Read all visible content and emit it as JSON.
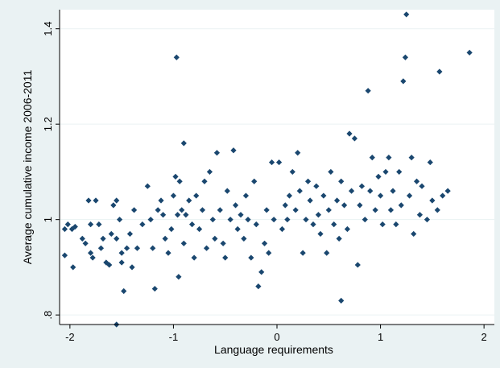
{
  "chart_data": {
    "type": "scatter",
    "title": "",
    "xlabel": "Language requirements",
    "ylabel": "Average cumulative income 2006-2011",
    "xlim": [
      -2.1,
      2.1
    ],
    "ylim": [
      0.78,
      1.44
    ],
    "xticks": [
      {
        "value": -2,
        "label": "-2"
      },
      {
        "value": -1,
        "label": "-1"
      },
      {
        "value": 0,
        "label": "0"
      },
      {
        "value": 1,
        "label": "1"
      },
      {
        "value": 2,
        "label": "2"
      }
    ],
    "yticks": [
      {
        "value": 0.8,
        "label": ".8"
      },
      {
        "value": 1.0,
        "label": "1"
      },
      {
        "value": 1.2,
        "label": "1.2"
      },
      {
        "value": 1.4,
        "label": "1.4"
      }
    ],
    "grid": "horizontal",
    "legend": "none",
    "colors": {
      "outer_background": "#eaf2f3",
      "plot_background": "#ffffff",
      "marker": "#1a476f",
      "grid": "#eaf2f3",
      "axis": "#000000"
    },
    "marker": "diamond",
    "points": [
      [
        -2.05,
        0.98
      ],
      [
        -2.05,
        0.925
      ],
      [
        -2.02,
        0.99
      ],
      [
        -1.98,
        0.98
      ],
      [
        -1.95,
        0.985
      ],
      [
        -1.97,
        0.9
      ],
      [
        -1.88,
        0.96
      ],
      [
        -1.85,
        0.95
      ],
      [
        -1.82,
        1.04
      ],
      [
        -1.8,
        0.99
      ],
      [
        -1.8,
        0.93
      ],
      [
        -1.78,
        0.92
      ],
      [
        -1.75,
        1.04
      ],
      [
        -1.72,
        0.99
      ],
      [
        -1.7,
        0.94
      ],
      [
        -1.68,
        0.96
      ],
      [
        -1.65,
        0.91
      ],
      [
        -1.62,
        0.905
      ],
      [
        -1.6,
        0.97
      ],
      [
        -1.58,
        1.03
      ],
      [
        -1.55,
        1.04
      ],
      [
        -1.55,
        0.96
      ],
      [
        -1.52,
        1.0
      ],
      [
        -1.5,
        0.93
      ],
      [
        -1.5,
        0.91
      ],
      [
        -1.48,
        0.85
      ],
      [
        -1.45,
        0.94
      ],
      [
        -1.42,
        0.97
      ],
      [
        -1.4,
        0.9
      ],
      [
        -1.38,
        1.02
      ],
      [
        -1.35,
        0.94
      ],
      [
        -1.55,
        0.78
      ],
      [
        -1.3,
        0.99
      ],
      [
        -1.25,
        1.07
      ],
      [
        -1.22,
        1.0
      ],
      [
        -1.2,
        0.94
      ],
      [
        -1.18,
        0.855
      ],
      [
        -1.15,
        1.02
      ],
      [
        -1.12,
        1.04
      ],
      [
        -1.1,
        1.01
      ],
      [
        -1.08,
        0.96
      ],
      [
        -1.05,
        0.93
      ],
      [
        -1.02,
        0.98
      ],
      [
        -1.0,
        1.05
      ],
      [
        -0.98,
        1.09
      ],
      [
        -0.96,
        1.01
      ],
      [
        -0.95,
        0.88
      ],
      [
        -0.97,
        1.34
      ],
      [
        -0.94,
        1.08
      ],
      [
        -0.92,
        1.02
      ],
      [
        -0.9,
        0.95
      ],
      [
        -0.9,
        1.16
      ],
      [
        -0.88,
        1.01
      ],
      [
        -0.85,
        1.04
      ],
      [
        -0.82,
        0.99
      ],
      [
        -0.8,
        0.92
      ],
      [
        -0.78,
        1.05
      ],
      [
        -0.75,
        0.98
      ],
      [
        -0.72,
        1.02
      ],
      [
        -0.7,
        1.08
      ],
      [
        -0.68,
        0.94
      ],
      [
        -0.65,
        1.1
      ],
      [
        -0.62,
        1.0
      ],
      [
        -0.6,
        0.96
      ],
      [
        -0.58,
        1.14
      ],
      [
        -0.55,
        1.02
      ],
      [
        -0.52,
        0.95
      ],
      [
        -0.5,
        0.92
      ],
      [
        -0.48,
        1.06
      ],
      [
        -0.45,
        1.0
      ],
      [
        -0.42,
        1.145
      ],
      [
        -0.4,
        1.03
      ],
      [
        -0.38,
        0.98
      ],
      [
        -0.35,
        1.01
      ],
      [
        -0.32,
        0.96
      ],
      [
        -0.3,
        1.05
      ],
      [
        -0.28,
        1.0
      ],
      [
        -0.25,
        0.92
      ],
      [
        -0.22,
        1.08
      ],
      [
        -0.2,
        0.99
      ],
      [
        -0.18,
        0.86
      ],
      [
        -0.15,
        0.89
      ],
      [
        -0.12,
        0.95
      ],
      [
        -0.1,
        1.02
      ],
      [
        -0.08,
        0.93
      ],
      [
        -0.05,
        1.12
      ],
      [
        -0.03,
        1.0
      ],
      [
        0.02,
        1.12
      ],
      [
        0.05,
        0.98
      ],
      [
        0.08,
        1.03
      ],
      [
        0.1,
        1.0
      ],
      [
        0.12,
        1.05
      ],
      [
        0.15,
        1.1
      ],
      [
        0.18,
        1.02
      ],
      [
        0.2,
        1.14
      ],
      [
        0.22,
        1.06
      ],
      [
        0.25,
        0.93
      ],
      [
        0.28,
        1.0
      ],
      [
        0.3,
        1.08
      ],
      [
        0.32,
        1.04
      ],
      [
        0.35,
        0.99
      ],
      [
        0.38,
        1.07
      ],
      [
        0.4,
        1.01
      ],
      [
        0.42,
        0.97
      ],
      [
        0.45,
        1.05
      ],
      [
        0.48,
        0.93
      ],
      [
        0.5,
        1.02
      ],
      [
        0.52,
        1.1
      ],
      [
        0.55,
        0.99
      ],
      [
        0.58,
        1.04
      ],
      [
        0.6,
        0.96
      ],
      [
        0.62,
        0.83
      ],
      [
        0.62,
        1.08
      ],
      [
        0.65,
        1.03
      ],
      [
        0.68,
        0.98
      ],
      [
        0.7,
        1.18
      ],
      [
        0.72,
        1.06
      ],
      [
        0.75,
        1.17
      ],
      [
        0.78,
        0.905
      ],
      [
        0.8,
        1.03
      ],
      [
        0.82,
        1.07
      ],
      [
        0.85,
        1.0
      ],
      [
        0.88,
        1.27
      ],
      [
        0.9,
        1.06
      ],
      [
        0.92,
        1.13
      ],
      [
        0.95,
        1.02
      ],
      [
        0.98,
        1.09
      ],
      [
        1.0,
        1.05
      ],
      [
        1.02,
        0.99
      ],
      [
        1.05,
        1.1
      ],
      [
        1.08,
        1.13
      ],
      [
        1.1,
        1.02
      ],
      [
        1.12,
        1.06
      ],
      [
        1.15,
        0.99
      ],
      [
        1.18,
        1.1
      ],
      [
        1.2,
        1.03
      ],
      [
        1.22,
        1.29
      ],
      [
        1.24,
        1.34
      ],
      [
        1.25,
        1.43
      ],
      [
        1.28,
        1.05
      ],
      [
        1.3,
        1.13
      ],
      [
        1.32,
        0.97
      ],
      [
        1.35,
        1.08
      ],
      [
        1.38,
        1.01
      ],
      [
        1.4,
        1.07
      ],
      [
        1.45,
        1.0
      ],
      [
        1.48,
        1.12
      ],
      [
        1.5,
        1.04
      ],
      [
        1.55,
        1.02
      ],
      [
        1.57,
        1.31
      ],
      [
        1.6,
        1.05
      ],
      [
        1.65,
        1.06
      ],
      [
        1.86,
        1.35
      ]
    ]
  }
}
